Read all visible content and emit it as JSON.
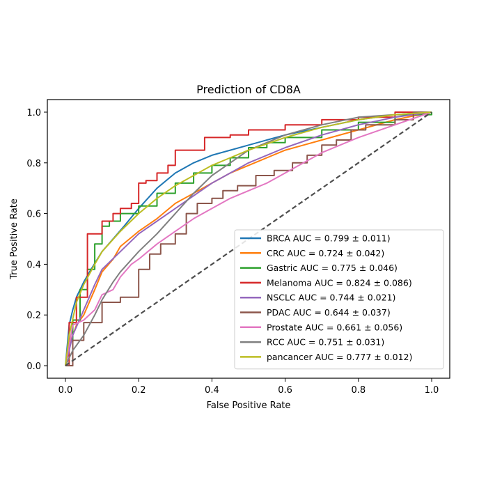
{
  "chart_data": {
    "type": "line",
    "title": "Prediction of CD8A",
    "xlabel": "False Positive Rate",
    "ylabel": "True Positive Rate",
    "xlim": [
      0.0,
      1.0
    ],
    "ylim": [
      0.0,
      1.0
    ],
    "xticks": [
      "0.0",
      "0.2",
      "0.4",
      "0.6",
      "0.8",
      "1.0"
    ],
    "yticks": [
      "0.0",
      "0.2",
      "0.4",
      "0.6",
      "0.8",
      "1.0"
    ],
    "grid": false,
    "legend_position": "lower-right",
    "diagonal": {
      "x": [
        0,
        1
      ],
      "y": [
        0,
        1
      ],
      "color": "#4d4d4d",
      "style": "dashed"
    },
    "series": [
      {
        "name": "BRCA AUC = 0.799 ± 0.011)",
        "color": "#1f77b4",
        "step": false,
        "x": [
          0,
          0.01,
          0.02,
          0.03,
          0.05,
          0.07,
          0.1,
          0.13,
          0.16,
          0.2,
          0.25,
          0.3,
          0.35,
          0.4,
          0.45,
          0.5,
          0.55,
          0.6,
          0.7,
          0.8,
          0.9,
          1.0
        ],
        "y": [
          0,
          0.16,
          0.22,
          0.27,
          0.33,
          0.38,
          0.45,
          0.5,
          0.55,
          0.62,
          0.7,
          0.76,
          0.8,
          0.83,
          0.85,
          0.87,
          0.89,
          0.91,
          0.94,
          0.97,
          0.99,
          1.0
        ]
      },
      {
        "name": "CRC AUC = 0.724 ± 0.042)",
        "color": "#ff7f0e",
        "step": false,
        "x": [
          0,
          0.01,
          0.03,
          0.05,
          0.08,
          0.1,
          0.13,
          0.15,
          0.2,
          0.25,
          0.3,
          0.35,
          0.4,
          0.45,
          0.5,
          0.55,
          0.6,
          0.65,
          0.7,
          0.8,
          0.9,
          1.0
        ],
        "y": [
          0,
          0.08,
          0.16,
          0.2,
          0.3,
          0.37,
          0.42,
          0.47,
          0.53,
          0.58,
          0.64,
          0.68,
          0.72,
          0.76,
          0.79,
          0.82,
          0.85,
          0.87,
          0.89,
          0.93,
          0.97,
          1.0
        ]
      },
      {
        "name": "Gastric AUC = 0.775 ± 0.046)",
        "color": "#2ca02c",
        "step": true,
        "x": [
          0,
          0.02,
          0.04,
          0.06,
          0.08,
          0.1,
          0.12,
          0.15,
          0.2,
          0.25,
          0.3,
          0.35,
          0.4,
          0.45,
          0.5,
          0.55,
          0.6,
          0.7,
          0.8,
          0.9,
          1.0
        ],
        "y": [
          0,
          0.18,
          0.3,
          0.38,
          0.48,
          0.55,
          0.57,
          0.6,
          0.63,
          0.68,
          0.72,
          0.76,
          0.79,
          0.82,
          0.86,
          0.88,
          0.9,
          0.93,
          0.96,
          0.99,
          1.0
        ]
      },
      {
        "name": "Melanoma AUC = 0.824 ± 0.086)",
        "color": "#d62728",
        "step": true,
        "x": [
          0,
          0.01,
          0.03,
          0.06,
          0.1,
          0.13,
          0.15,
          0.18,
          0.2,
          0.22,
          0.25,
          0.28,
          0.3,
          0.38,
          0.45,
          0.5,
          0.6,
          0.7,
          0.8,
          0.9,
          1.0
        ],
        "y": [
          0,
          0.17,
          0.27,
          0.52,
          0.57,
          0.6,
          0.62,
          0.64,
          0.72,
          0.73,
          0.76,
          0.79,
          0.85,
          0.9,
          0.91,
          0.93,
          0.95,
          0.97,
          0.98,
          1.0,
          1.0
        ]
      },
      {
        "name": "NSCLC AUC = 0.744 ± 0.021)",
        "color": "#9467bd",
        "step": false,
        "x": [
          0,
          0.02,
          0.05,
          0.08,
          0.1,
          0.15,
          0.2,
          0.25,
          0.3,
          0.35,
          0.4,
          0.45,
          0.5,
          0.55,
          0.6,
          0.7,
          0.8,
          0.9,
          1.0
        ],
        "y": [
          0,
          0.12,
          0.22,
          0.32,
          0.38,
          0.45,
          0.52,
          0.57,
          0.62,
          0.67,
          0.72,
          0.76,
          0.8,
          0.83,
          0.86,
          0.91,
          0.95,
          0.98,
          1.0
        ]
      },
      {
        "name": "PDAC AUC = 0.644 ± 0.037)",
        "color": "#8c564b",
        "step": true,
        "x": [
          0,
          0.02,
          0.05,
          0.1,
          0.15,
          0.2,
          0.23,
          0.26,
          0.3,
          0.33,
          0.36,
          0.4,
          0.43,
          0.47,
          0.52,
          0.57,
          0.62,
          0.66,
          0.7,
          0.74,
          0.78,
          0.82,
          0.9,
          0.95,
          1.0
        ],
        "y": [
          0,
          0.1,
          0.17,
          0.25,
          0.27,
          0.38,
          0.44,
          0.48,
          0.52,
          0.6,
          0.64,
          0.66,
          0.69,
          0.71,
          0.75,
          0.77,
          0.8,
          0.83,
          0.87,
          0.89,
          0.93,
          0.95,
          0.97,
          1.0,
          1.0
        ]
      },
      {
        "name": "Prostate AUC = 0.661 ± 0.056)",
        "color": "#e377c2",
        "step": false,
        "x": [
          0,
          0.02,
          0.05,
          0.08,
          0.1,
          0.13,
          0.15,
          0.18,
          0.2,
          0.25,
          0.3,
          0.35,
          0.4,
          0.45,
          0.5,
          0.55,
          0.6,
          0.65,
          0.7,
          0.8,
          0.9,
          1.0
        ],
        "y": [
          0,
          0.16,
          0.18,
          0.22,
          0.28,
          0.3,
          0.35,
          0.4,
          0.42,
          0.48,
          0.53,
          0.58,
          0.62,
          0.66,
          0.69,
          0.72,
          0.76,
          0.8,
          0.84,
          0.9,
          0.95,
          1.0
        ]
      },
      {
        "name": "RCC AUC = 0.751 ± 0.031)",
        "color": "#7f7f7f",
        "step": false,
        "x": [
          0,
          0.02,
          0.05,
          0.08,
          0.1,
          0.13,
          0.15,
          0.2,
          0.25,
          0.3,
          0.35,
          0.4,
          0.45,
          0.5,
          0.55,
          0.6,
          0.7,
          0.8,
          0.9,
          1.0
        ],
        "y": [
          0,
          0.06,
          0.12,
          0.2,
          0.26,
          0.33,
          0.37,
          0.45,
          0.52,
          0.6,
          0.68,
          0.75,
          0.8,
          0.85,
          0.88,
          0.91,
          0.95,
          0.98,
          0.99,
          1.0
        ]
      },
      {
        "name": "pancancer AUC = 0.777 ± 0.012)",
        "color": "#bcbd22",
        "step": false,
        "x": [
          0,
          0.01,
          0.03,
          0.05,
          0.08,
          0.1,
          0.15,
          0.2,
          0.25,
          0.3,
          0.35,
          0.4,
          0.45,
          0.5,
          0.6,
          0.7,
          0.8,
          0.9,
          1.0
        ],
        "y": [
          0,
          0.12,
          0.25,
          0.32,
          0.4,
          0.45,
          0.53,
          0.6,
          0.66,
          0.71,
          0.75,
          0.79,
          0.82,
          0.85,
          0.9,
          0.94,
          0.97,
          0.99,
          1.0
        ]
      }
    ]
  }
}
